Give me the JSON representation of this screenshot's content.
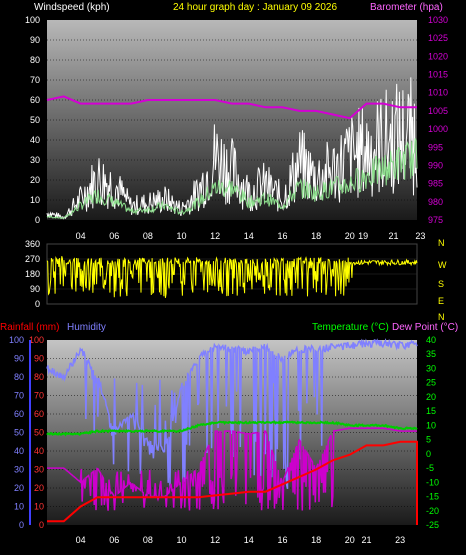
{
  "header": {
    "wind_label": "Windspeed (kph)",
    "title": "24 hour graph day : January 09 2026",
    "baro_label": "Barometer (hpa)"
  },
  "wind_panel": {
    "y_ticks": [
      "0",
      "10",
      "20",
      "30",
      "40",
      "50",
      "60",
      "70",
      "80",
      "90",
      "100"
    ],
    "baro_ticks": [
      "975",
      "980",
      "985",
      "990",
      "995",
      "1000",
      "1005",
      "1010",
      "1015",
      "1020",
      "1025",
      "1030"
    ],
    "x_ticks": [
      "04",
      "06",
      "08",
      "10",
      "12",
      "14",
      "16",
      "18",
      "20",
      "19",
      "21",
      "23"
    ]
  },
  "dir_panel": {
    "y_ticks": [
      "0",
      "90",
      "180",
      "270",
      "360"
    ],
    "compass": [
      "N",
      "W",
      "S",
      "E",
      "N"
    ]
  },
  "bottom_panel": {
    "rain_label": "Rainfall (mm)",
    "humidity_label": "Humidity",
    "temp_label": "Temperature (°C)",
    "dew_label": "Dew Point (°C)",
    "y_ticks_left": [
      "0",
      "10",
      "20",
      "30",
      "40",
      "50",
      "60",
      "70",
      "80",
      "90",
      "100"
    ],
    "y_ticks_right": [
      "40",
      "35",
      "30",
      "25",
      "20",
      "15",
      "10",
      "5",
      "0",
      "-5",
      "-10",
      "-15",
      "-20",
      "-25"
    ],
    "x_ticks": [
      "04",
      "06",
      "08",
      "10",
      "12",
      "14",
      "16",
      "18",
      "20",
      "21",
      "23"
    ]
  },
  "colors": {
    "wind_gust": "#ffffff",
    "wind_avg": "#8ee08e",
    "barometer": "#d400d4",
    "direction": "#ffff00",
    "rain": "#ff0000",
    "humidity": "#8080ff",
    "temperature": "#00cc00",
    "dew_point": "#cc00cc",
    "title": "#ffff00",
    "temp_label": "#00ff00"
  },
  "chart_data": [
    {
      "type": "line",
      "title": "24 hour graph day : January 09 2026",
      "ylabel": "Windspeed (kph)",
      "y2label": "Barometer (hpa)",
      "ylim": [
        0,
        100
      ],
      "y2lim": [
        975,
        1030
      ],
      "x_hours": [
        2,
        3,
        4,
        5,
        6,
        7,
        8,
        9,
        10,
        11,
        12,
        13,
        14,
        15,
        16,
        17,
        18,
        19,
        20,
        21,
        22,
        23,
        24
      ],
      "series": [
        {
          "name": "Windspeed",
          "values": [
            5,
            2,
            15,
            30,
            25,
            10,
            12,
            15,
            8,
            20,
            45,
            35,
            20,
            25,
            15,
            40,
            30,
            35,
            45,
            50,
            55,
            60,
            60
          ]
        },
        {
          "name": "Wind avg",
          "values": [
            2,
            1,
            8,
            14,
            10,
            5,
            6,
            8,
            4,
            10,
            18,
            18,
            10,
            12,
            8,
            18,
            15,
            18,
            20,
            25,
            28,
            32,
            35
          ]
        },
        {
          "name": "Barometer",
          "values": [
            1008,
            1009,
            1007,
            1007,
            1007,
            1007,
            1008,
            1008,
            1008,
            1008,
            1008,
            1007,
            1007,
            1006,
            1006,
            1005,
            1005,
            1004,
            1003,
            1007,
            1007,
            1006,
            1006
          ]
        }
      ]
    },
    {
      "type": "scatter",
      "ylabel": "Direction",
      "ylim": [
        0,
        360
      ],
      "x_hours": [
        2,
        3,
        4,
        5,
        6,
        7,
        8,
        9,
        10,
        11,
        12,
        13,
        14,
        15,
        16,
        17,
        18,
        19,
        20,
        21,
        22,
        23,
        24
      ],
      "series": [
        {
          "name": "Wind direction",
          "values": [
            270,
            270,
            250,
            260,
            200,
            230,
            200,
            180,
            250,
            200,
            240,
            200,
            270,
            180,
            230,
            200,
            260,
            200,
            180,
            250,
            250,
            250,
            250
          ]
        }
      ]
    },
    {
      "type": "line",
      "ylim": [
        0,
        100
      ],
      "y2lim": [
        -25,
        40
      ],
      "x_hours": [
        2,
        3,
        4,
        5,
        6,
        7,
        8,
        9,
        10,
        11,
        12,
        13,
        14,
        15,
        16,
        17,
        18,
        19,
        20,
        21,
        22,
        23,
        24
      ],
      "series": [
        {
          "name": "Rainfall (mm)",
          "values": [
            2,
            2,
            10,
            15,
            15,
            15,
            15,
            15,
            15,
            15,
            16,
            17,
            18,
            18,
            22,
            26,
            30,
            35,
            38,
            43,
            43,
            45,
            45
          ]
        },
        {
          "name": "Humidity",
          "values": [
            85,
            80,
            95,
            80,
            50,
            60,
            45,
            40,
            75,
            90,
            97,
            95,
            94,
            96,
            90,
            95,
            95,
            96,
            97,
            98,
            98,
            97,
            98
          ]
        },
        {
          "name": "Temperature (°C)",
          "values": [
            7,
            7,
            7,
            8,
            8,
            8,
            8,
            8,
            8,
            10,
            11,
            11,
            11,
            11,
            11,
            11,
            11,
            11,
            10,
            10,
            10,
            9,
            9
          ]
        },
        {
          "name": "Dew Point (°C)",
          "values": [
            -5,
            -5,
            -10,
            -5,
            -15,
            -10,
            -15,
            -15,
            -10,
            -5,
            8,
            8,
            7,
            8,
            -10,
            5,
            -5,
            8,
            9,
            9,
            9,
            8,
            8
          ]
        }
      ]
    }
  ]
}
